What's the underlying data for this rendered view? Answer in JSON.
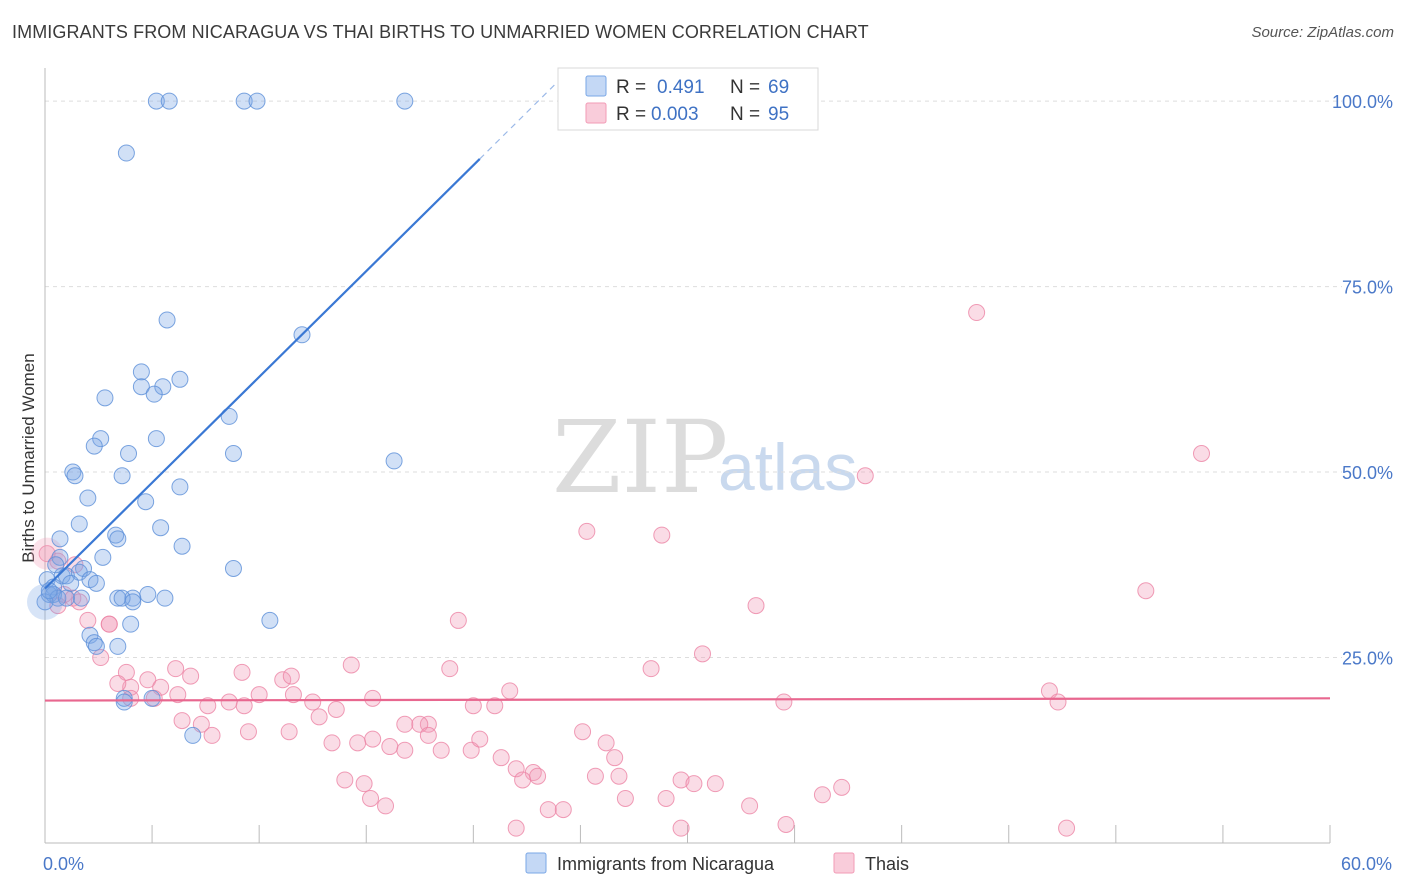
{
  "title": "IMMIGRANTS FROM NICARAGUA VS THAI BIRTHS TO UNMARRIED WOMEN CORRELATION CHART",
  "source": "Source: ZipAtlas.com",
  "watermark": {
    "zip": "ZIP",
    "atlas": "atlas"
  },
  "legend": {
    "r_label": "R =",
    "n_label": "N =",
    "entries": [
      {
        "name": "Immigrants from Nicaragua",
        "r": "0.491",
        "n": "69",
        "color": "#7aa7e6"
      },
      {
        "name": "Thais",
        "r": "0.003",
        "n": "95",
        "color": "#f29bb6"
      }
    ]
  },
  "chart_data": {
    "type": "scatter",
    "title": "IMMIGRANTS FROM NICARAGUA VS THAI BIRTHS TO UNMARRIED WOMEN CORRELATION CHART",
    "xlabel": "",
    "ylabel": "Births to Unmarried Women",
    "xlim": [
      0,
      60
    ],
    "ylim": [
      0,
      105
    ],
    "x_tick_labels": [
      {
        "value": 0,
        "label": "0.0%"
      },
      {
        "value": 60,
        "label": "60.0%"
      }
    ],
    "y_tick_labels": [
      {
        "value": 25,
        "label": "25.0%"
      },
      {
        "value": 50,
        "label": "50.0%"
      },
      {
        "value": 75,
        "label": "75.0%"
      },
      {
        "value": 100,
        "label": "100.0%"
      }
    ],
    "series": [
      {
        "name": "Immigrants from Nicaragua",
        "color": "#7aa7e6",
        "stroke": "#5b8fd8",
        "trend": {
          "x0": 0,
          "y0": 34.3,
          "x1": 20.3,
          "y1": 92.2,
          "dash_to_x": 23.9,
          "dash_to_y": 102.5
        },
        "points": [
          [
            5.2,
            100
          ],
          [
            5.8,
            100
          ],
          [
            9.3,
            100
          ],
          [
            9.9,
            100
          ],
          [
            16.8,
            100
          ],
          [
            3.8,
            93
          ],
          [
            5.7,
            70.5
          ],
          [
            12,
            68.5
          ],
          [
            4.5,
            63.5
          ],
          [
            6.3,
            62.5
          ],
          [
            4.5,
            61.5
          ],
          [
            5.5,
            61.5
          ],
          [
            2.8,
            60
          ],
          [
            5.1,
            60.5
          ],
          [
            8.6,
            57.5
          ],
          [
            2.6,
            54.5
          ],
          [
            5.2,
            54.5
          ],
          [
            2.3,
            53.5
          ],
          [
            3.9,
            52.5
          ],
          [
            8.8,
            52.5
          ],
          [
            16.3,
            51.5
          ],
          [
            1.3,
            50
          ],
          [
            3.6,
            49.5
          ],
          [
            1.4,
            49.5
          ],
          [
            6.3,
            48
          ],
          [
            2,
            46.5
          ],
          [
            4.7,
            46
          ],
          [
            1.6,
            43
          ],
          [
            5.4,
            42.5
          ],
          [
            3.3,
            41.5
          ],
          [
            3.4,
            41
          ],
          [
            0.7,
            41
          ],
          [
            6.4,
            40
          ],
          [
            2.7,
            38.5
          ],
          [
            0.7,
            38.5
          ],
          [
            1.8,
            37
          ],
          [
            8.8,
            37
          ],
          [
            0.8,
            36
          ],
          [
            1,
            36
          ],
          [
            1.6,
            36.5
          ],
          [
            2.1,
            35.5
          ],
          [
            1.2,
            35
          ],
          [
            0.1,
            35.5
          ],
          [
            0.4,
            34.5
          ],
          [
            2.4,
            35
          ],
          [
            4.1,
            33
          ],
          [
            4.8,
            33.5
          ],
          [
            3.4,
            33
          ],
          [
            3.6,
            33
          ],
          [
            0.2,
            33.5
          ],
          [
            0.4,
            33.5
          ],
          [
            0.6,
            33
          ],
          [
            1.7,
            33
          ],
          [
            4.1,
            32.5
          ],
          [
            10.5,
            30
          ],
          [
            4,
            29.5
          ],
          [
            2.1,
            28
          ],
          [
            3.4,
            26.5
          ],
          [
            2.3,
            27
          ],
          [
            3.7,
            19.5
          ],
          [
            5,
            19.5
          ],
          [
            3.7,
            19
          ],
          [
            6.9,
            14.5
          ],
          [
            0,
            32.5
          ],
          [
            0.2,
            34
          ],
          [
            0.5,
            37.5
          ],
          [
            1,
            33
          ],
          [
            5.6,
            33
          ],
          [
            2.4,
            26.5
          ]
        ]
      },
      {
        "name": "Thais",
        "color": "#f29bb6",
        "stroke": "#ec85a5",
        "trend": {
          "x0": 0,
          "y0": 19.2,
          "x1": 60,
          "y1": 19.5
        },
        "points": [
          [
            43.5,
            71.5
          ],
          [
            54,
            52.5
          ],
          [
            38.3,
            49.5
          ],
          [
            25.3,
            42
          ],
          [
            28.8,
            41.5
          ],
          [
            33.2,
            32
          ],
          [
            51.4,
            34
          ],
          [
            0.1,
            39
          ],
          [
            0.6,
            38
          ],
          [
            1.4,
            37.5
          ],
          [
            0.9,
            33.5
          ],
          [
            1.3,
            33
          ],
          [
            1.6,
            32.5
          ],
          [
            0.6,
            32
          ],
          [
            2,
            30
          ],
          [
            3,
            29.5
          ],
          [
            3,
            29.5
          ],
          [
            19.3,
            30
          ],
          [
            30.7,
            25.5
          ],
          [
            2.6,
            25
          ],
          [
            3.8,
            23
          ],
          [
            4.8,
            22
          ],
          [
            5.4,
            21
          ],
          [
            4,
            21
          ],
          [
            3.4,
            21.5
          ],
          [
            6.1,
            23.5
          ],
          [
            6.8,
            22.5
          ],
          [
            6.2,
            20
          ],
          [
            4,
            19.5
          ],
          [
            5.1,
            19.5
          ],
          [
            7.6,
            18.5
          ],
          [
            8.6,
            19
          ],
          [
            9.3,
            18.5
          ],
          [
            9.2,
            23
          ],
          [
            11.1,
            22
          ],
          [
            11.5,
            22.5
          ],
          [
            11.6,
            20
          ],
          [
            10,
            20
          ],
          [
            12.8,
            17
          ],
          [
            12.5,
            19
          ],
          [
            14.3,
            24
          ],
          [
            15.3,
            19.5
          ],
          [
            18.9,
            23.5
          ],
          [
            21.7,
            20.5
          ],
          [
            20,
            18.5
          ],
          [
            21,
            18.5
          ],
          [
            28.3,
            23.5
          ],
          [
            34.5,
            19
          ],
          [
            46.9,
            20.5
          ],
          [
            47.3,
            19
          ],
          [
            6.4,
            16.5
          ],
          [
            7.3,
            16
          ],
          [
            7.8,
            14.5
          ],
          [
            9.5,
            15
          ],
          [
            11.4,
            15
          ],
          [
            13.4,
            13.5
          ],
          [
            14.6,
            13.5
          ],
          [
            13.6,
            18
          ],
          [
            16.8,
            16
          ],
          [
            17.9,
            16
          ],
          [
            17.5,
            16
          ],
          [
            17.9,
            14.5
          ],
          [
            15.3,
            14
          ],
          [
            16.8,
            12.5
          ],
          [
            16.1,
            13
          ],
          [
            18.5,
            12.5
          ],
          [
            19.9,
            12.5
          ],
          [
            20.3,
            14
          ],
          [
            21.3,
            11.5
          ],
          [
            22,
            10
          ],
          [
            22.8,
            9.5
          ],
          [
            23,
            9
          ],
          [
            25.1,
            15
          ],
          [
            25.7,
            9
          ],
          [
            26.8,
            9
          ],
          [
            26.2,
            13.5
          ],
          [
            26.6,
            11.5
          ],
          [
            14.9,
            8
          ],
          [
            14,
            8.5
          ],
          [
            15.2,
            6
          ],
          [
            15.9,
            5
          ],
          [
            22.3,
            8.5
          ],
          [
            27.1,
            6
          ],
          [
            29.7,
            8.5
          ],
          [
            29,
            6
          ],
          [
            30.3,
            8
          ],
          [
            31.3,
            8
          ],
          [
            32.9,
            5
          ],
          [
            36.3,
            6.5
          ],
          [
            37.2,
            7.5
          ],
          [
            22,
            2
          ],
          [
            23.5,
            4.5
          ],
          [
            24.2,
            4.5
          ],
          [
            29.7,
            2
          ],
          [
            34.6,
            2.5
          ],
          [
            47.7,
            2
          ]
        ]
      }
    ]
  }
}
